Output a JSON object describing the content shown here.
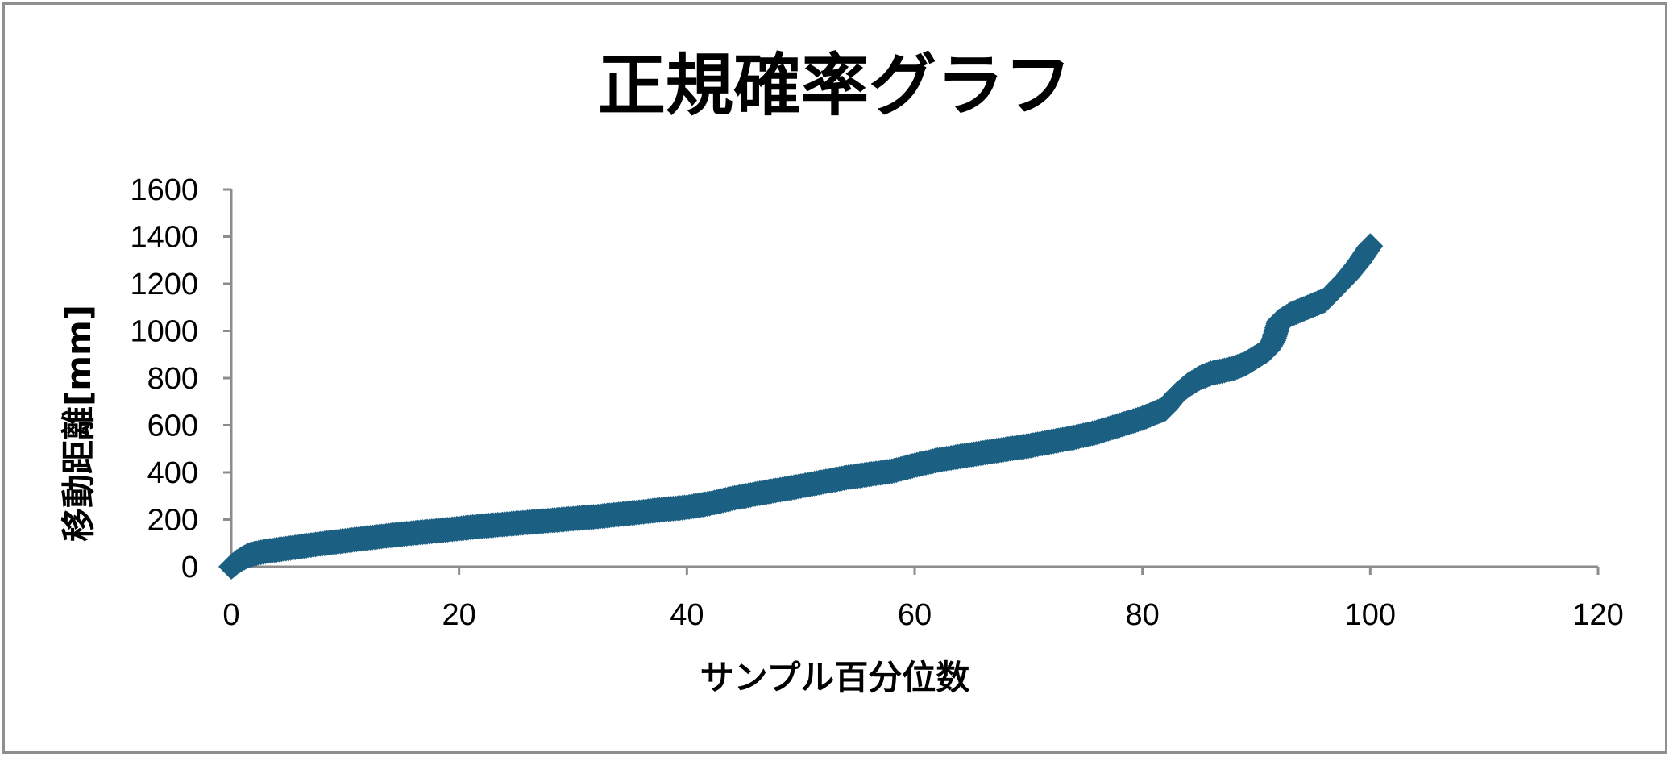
{
  "chart_data": {
    "type": "scatter",
    "title": "正規確率グラフ",
    "xlabel": "サンプル百分位数",
    "ylabel": "移動距離[mm]",
    "xlim": [
      0,
      120
    ],
    "ylim": [
      0,
      1600
    ],
    "xticks": [
      0,
      20,
      40,
      60,
      80,
      100,
      120
    ],
    "yticks": [
      0,
      200,
      400,
      600,
      800,
      1000,
      1200,
      1400,
      1600
    ],
    "marker": "diamond",
    "grid": false,
    "color": "#1B6083",
    "series": [
      {
        "x": [
          0,
          0.5,
          1,
          1.5,
          2,
          3,
          4,
          5,
          6,
          7,
          8,
          10,
          12,
          14,
          16,
          18,
          20,
          22,
          24,
          26,
          28,
          30,
          32,
          34,
          36,
          38,
          40,
          42,
          44,
          46,
          48,
          50,
          52,
          54,
          56,
          58,
          60,
          62,
          64,
          66,
          68,
          70,
          72,
          74,
          76,
          78,
          80,
          81,
          82,
          83,
          84,
          85,
          86,
          87,
          88,
          89,
          90,
          91,
          91.5,
          92,
          93,
          94,
          95,
          96,
          97,
          98,
          99,
          100
        ],
        "y": [
          0,
          20,
          35,
          48,
          55,
          65,
          72,
          78,
          85,
          92,
          98,
          110,
          122,
          133,
          143,
          152,
          162,
          172,
          180,
          188,
          196,
          204,
          212,
          222,
          232,
          243,
          252,
          268,
          290,
          308,
          325,
          342,
          360,
          378,
          392,
          405,
          430,
          452,
          468,
          483,
          498,
          512,
          530,
          548,
          570,
          600,
          630,
          650,
          670,
          730,
          770,
          800,
          820,
          830,
          842,
          860,
          890,
          920,
          960,
          1040,
          1070,
          1090,
          1110,
          1130,
          1180,
          1230,
          1290,
          1360
        ]
      }
    ]
  }
}
